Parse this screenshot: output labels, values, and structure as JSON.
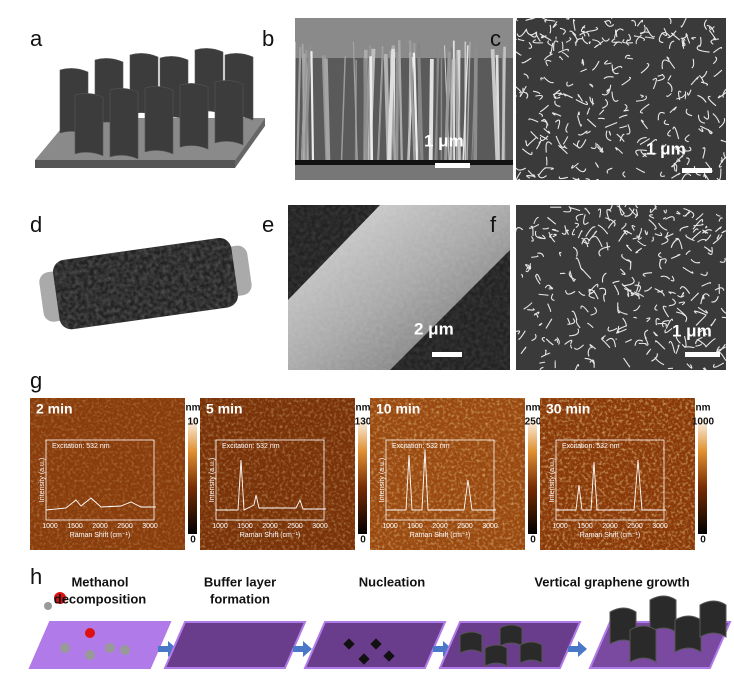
{
  "panel_labels": [
    "a",
    "b",
    "c",
    "d",
    "e",
    "f",
    "g",
    "h"
  ],
  "scale_bars": [
    "1 μm",
    "1 μm",
    "2 μm",
    "1 μm"
  ],
  "afm": [
    {
      "time": "2 min",
      "unit": "nm",
      "max": 10,
      "min": 0
    },
    {
      "time": "5 min",
      "unit": "nm",
      "max": 130,
      "min": 0
    },
    {
      "time": "10 min",
      "unit": "nm",
      "max": 250,
      "min": 0
    },
    {
      "time": "30 min",
      "unit": "nm",
      "max": 1000,
      "min": 0
    }
  ],
  "raman_inset": {
    "excitation": "Excitation: 532 nm",
    "ylabel": "Intensity (a.u.)",
    "xlabel": "Raman Shift (cm⁻¹)",
    "xticks": [
      1000,
      1500,
      2000,
      2500,
      3000
    ]
  },
  "steps": [
    {
      "lines": [
        "Methanol",
        "decomposition"
      ]
    },
    {
      "lines": [
        "Buffer layer",
        "formation"
      ]
    },
    {
      "lines": [
        "Nucleation"
      ]
    },
    {
      "lines": [
        "Vertical graphene growth"
      ]
    }
  ]
}
